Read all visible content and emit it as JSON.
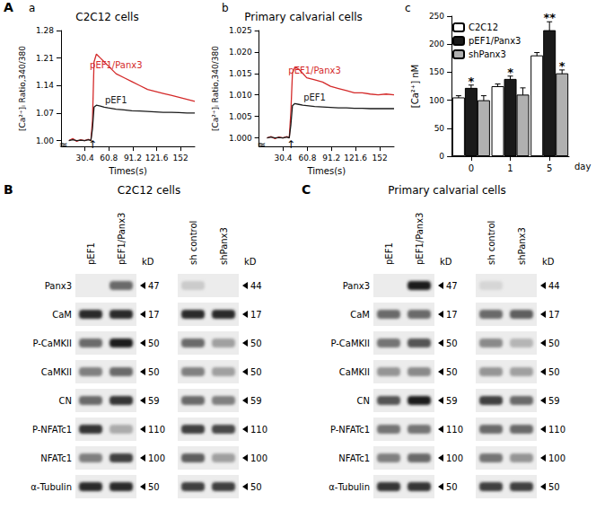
{
  "panel_label": "A",
  "chart_data": [
    {
      "type": "line",
      "panel": "a",
      "title": "C2C12 cells",
      "x_label": "Times(s)",
      "y_label": "[Ca²⁺]ᵢ Ratio,340/380",
      "x": [
        10,
        15,
        20,
        25,
        30,
        35,
        38,
        40,
        42,
        45,
        50,
        55,
        60,
        70,
        80,
        90,
        100,
        110,
        120,
        130,
        140,
        150,
        160,
        170
      ],
      "series": [
        {
          "name": "pEF1/Panx3",
          "color": "#d42a2a",
          "values": [
            1.0,
            1.005,
            0.998,
            1.002,
            1.0,
            1.003,
            1.0,
            1.05,
            1.2,
            1.22,
            1.21,
            1.2,
            1.19,
            1.17,
            1.16,
            1.15,
            1.14,
            1.13,
            1.125,
            1.12,
            1.115,
            1.11,
            1.105,
            1.1
          ]
        },
        {
          "name": "pEF1",
          "color": "#1a1a1a",
          "values": [
            1.0,
            1.002,
            1.0,
            1.001,
            1.0,
            1.002,
            1.0,
            1.03,
            1.085,
            1.09,
            1.088,
            1.085,
            1.083,
            1.08,
            1.078,
            1.076,
            1.075,
            1.074,
            1.073,
            1.072,
            1.072,
            1.071,
            1.07,
            1.07
          ]
        }
      ],
      "xlim": [
        0,
        170
      ],
      "ylim": [
        0.985,
        1.28
      ],
      "xticks": [
        30.4,
        60.8,
        91.2,
        121.6,
        152
      ],
      "yticks": [
        {
          "value": 1,
          "label": "1.00"
        },
        1.07,
        1.14,
        1.21,
        1.28
      ],
      "grid": false,
      "annotations": [
        {
          "x": 40,
          "y": 0.99,
          "text": "↑"
        },
        {
          "x": 3,
          "y": 0.99,
          "text": "≈"
        }
      ]
    },
    {
      "type": "line",
      "panel": "b",
      "title": "Primary calvarial cells",
      "x_label": "Times(s)",
      "y_label": "[Ca²⁺]ᵢ Ratio,340/380",
      "x": [
        10,
        15,
        20,
        25,
        30,
        35,
        38,
        40,
        42,
        45,
        50,
        55,
        60,
        70,
        80,
        90,
        100,
        110,
        120,
        130,
        140,
        150,
        160,
        170
      ],
      "series": [
        {
          "name": "pEF1/Panx3",
          "color": "#d42a2a",
          "values": [
            1.0,
            1.0003,
            0.9998,
            1.0002,
            1.0,
            1.0003,
            1.0,
            1.006,
            1.015,
            1.0165,
            1.016,
            1.015,
            1.014,
            1.0135,
            1.013,
            1.012,
            1.0115,
            1.011,
            1.0105,
            1.0105,
            1.0102,
            1.01,
            1.0102,
            1.01
          ]
        },
        {
          "name": "pEF1",
          "color": "#1a1a1a",
          "values": [
            1.0,
            1.0002,
            1.0,
            1.0001,
            1.0,
            1.0002,
            1.0,
            1.003,
            1.0075,
            1.008,
            1.0078,
            1.0076,
            1.0075,
            1.0073,
            1.0072,
            1.0071,
            1.007,
            1.007,
            1.0069,
            1.0069,
            1.0068,
            1.0068,
            1.0068,
            1.0068
          ]
        }
      ],
      "xlim": [
        0,
        170
      ],
      "ylim": [
        0.998,
        1.025
      ],
      "xticks": [
        30.4,
        60.8,
        91.2,
        121.6,
        152
      ],
      "yticks": [
        {
          "value": 1,
          "label": "1.000"
        },
        1.005,
        {
          "value": 1.01,
          "label": "1.010"
        },
        1.015,
        {
          "value": 1.02,
          "label": "1.020"
        },
        1.025
      ],
      "grid": false,
      "annotations": [
        {
          "x": 40,
          "y": 0.9985,
          "text": "↑"
        },
        {
          "x": 3,
          "y": 0.9985,
          "text": "≈"
        }
      ]
    },
    {
      "type": "bar",
      "panel": "c",
      "categories": [
        "0",
        "1",
        "5"
      ],
      "x_label": "day",
      "y_label": "[Ca²⁺] nM",
      "series": [
        {
          "name": "C2C12",
          "color": "#ffffff",
          "values": [
            105,
            125,
            180
          ],
          "errors": [
            3,
            4,
            5
          ]
        },
        {
          "name": "pEF1/Panx3",
          "color": "#1a1a1a",
          "values": [
            122,
            138,
            225
          ],
          "errors": [
            5,
            5,
            15
          ]
        },
        {
          "name": "shPanx3",
          "color": "#b0b0b0",
          "values": [
            100,
            110,
            148
          ],
          "errors": [
            8,
            12,
            6
          ]
        }
      ],
      "ylim": [
        0,
        250
      ],
      "yticks": [
        0,
        50,
        100,
        150,
        200,
        250
      ],
      "grid": false,
      "legend": "upper left",
      "annotations": [
        {
          "category": "0",
          "series": "pEF1/Panx3",
          "text": "*"
        },
        {
          "category": "1",
          "series": "pEF1/Panx3",
          "text": "*"
        },
        {
          "category": "5",
          "series": "pEF1/Panx3",
          "text": "**"
        },
        {
          "category": "5",
          "series": "shPanx3",
          "text": "*"
        }
      ]
    }
  ],
  "blots": [
    {
      "panel": "B",
      "title": "C2C12 cells",
      "unit": "kD",
      "rows": [
        "Panx3",
        "CaM",
        "P-CaMKII",
        "CaMKII",
        "CN",
        "P-NFATc1",
        "NFATc1",
        "α-Tubulin"
      ],
      "groups": [
        {
          "lanes": [
            "pEF1",
            "pEF1/Panx3"
          ],
          "kD": [
            47,
            17,
            50,
            50,
            59,
            110,
            100,
            50
          ],
          "intensity": [
            [
              0,
              0.6
            ],
            [
              0.9,
              0.9
            ],
            [
              0.6,
              0.95
            ],
            [
              0.5,
              0.6
            ],
            [
              0.6,
              0.85
            ],
            [
              0.85,
              0.3
            ],
            [
              0.5,
              0.8
            ],
            [
              0.9,
              0.9
            ]
          ]
        },
        {
          "lanes": [
            "sh control",
            "shPanx3"
          ],
          "kD": [
            44,
            17,
            50,
            50,
            59,
            110,
            100,
            50
          ],
          "intensity": [
            [
              0.15,
              0
            ],
            [
              0.9,
              0.9
            ],
            [
              0.6,
              0.35
            ],
            [
              0.5,
              0.35
            ],
            [
              0.6,
              0.5
            ],
            [
              0.8,
              0.75
            ],
            [
              0.65,
              0.35
            ],
            [
              0.8,
              0.8
            ]
          ]
        }
      ]
    },
    {
      "panel": "C",
      "title": "Primary calvarial cells",
      "unit": "kD",
      "rows": [
        "Panx3",
        "CaM",
        "P-CaMKII",
        "CaMKII",
        "CN",
        "P-NFATc1",
        "NFATc1",
        "α-Tubulin"
      ],
      "groups": [
        {
          "lanes": [
            "pEF1",
            "pEF1/Panx3"
          ],
          "kD": [
            47,
            17,
            50,
            50,
            59,
            110,
            100,
            50
          ],
          "intensity": [
            [
              0,
              0.95
            ],
            [
              0.6,
              0.6
            ],
            [
              0.55,
              0.7
            ],
            [
              0.4,
              0.45
            ],
            [
              0.7,
              0.95
            ],
            [
              0.55,
              0.55
            ],
            [
              0.5,
              0.6
            ],
            [
              0.85,
              0.85
            ]
          ]
        },
        {
          "lanes": [
            "sh control",
            "shPanx3"
          ],
          "kD": [
            44,
            17,
            50,
            50,
            59,
            110,
            100,
            50
          ],
          "intensity": [
            [
              0.1,
              0
            ],
            [
              0.6,
              0.65
            ],
            [
              0.45,
              0.25
            ],
            [
              0.4,
              0.35
            ],
            [
              0.8,
              0.6
            ],
            [
              0.6,
              0.6
            ],
            [
              0.55,
              0.4
            ],
            [
              0.8,
              0.8
            ]
          ]
        }
      ]
    }
  ]
}
